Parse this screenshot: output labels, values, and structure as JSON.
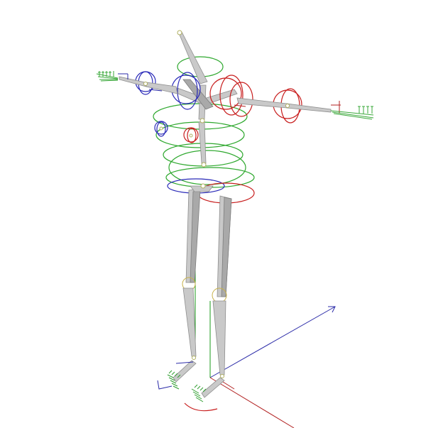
{
  "scene": {
    "background": "#ffffff",
    "bone_color": "#c9c9c9",
    "colors": {
      "left_side_controls": "#2a2ab8",
      "right_side_controls": "#c81e1e",
      "spine_controls": "#2ea82e",
      "world_axis_x": "#b22222",
      "world_axis_y": "#1a9a1a",
      "world_axis_z": "#2b2ba8"
    },
    "icons": {
      "skeleton": "bone-rig",
      "controls": "rotation-rings",
      "world_axes": "xyz-gizmo"
    }
  }
}
